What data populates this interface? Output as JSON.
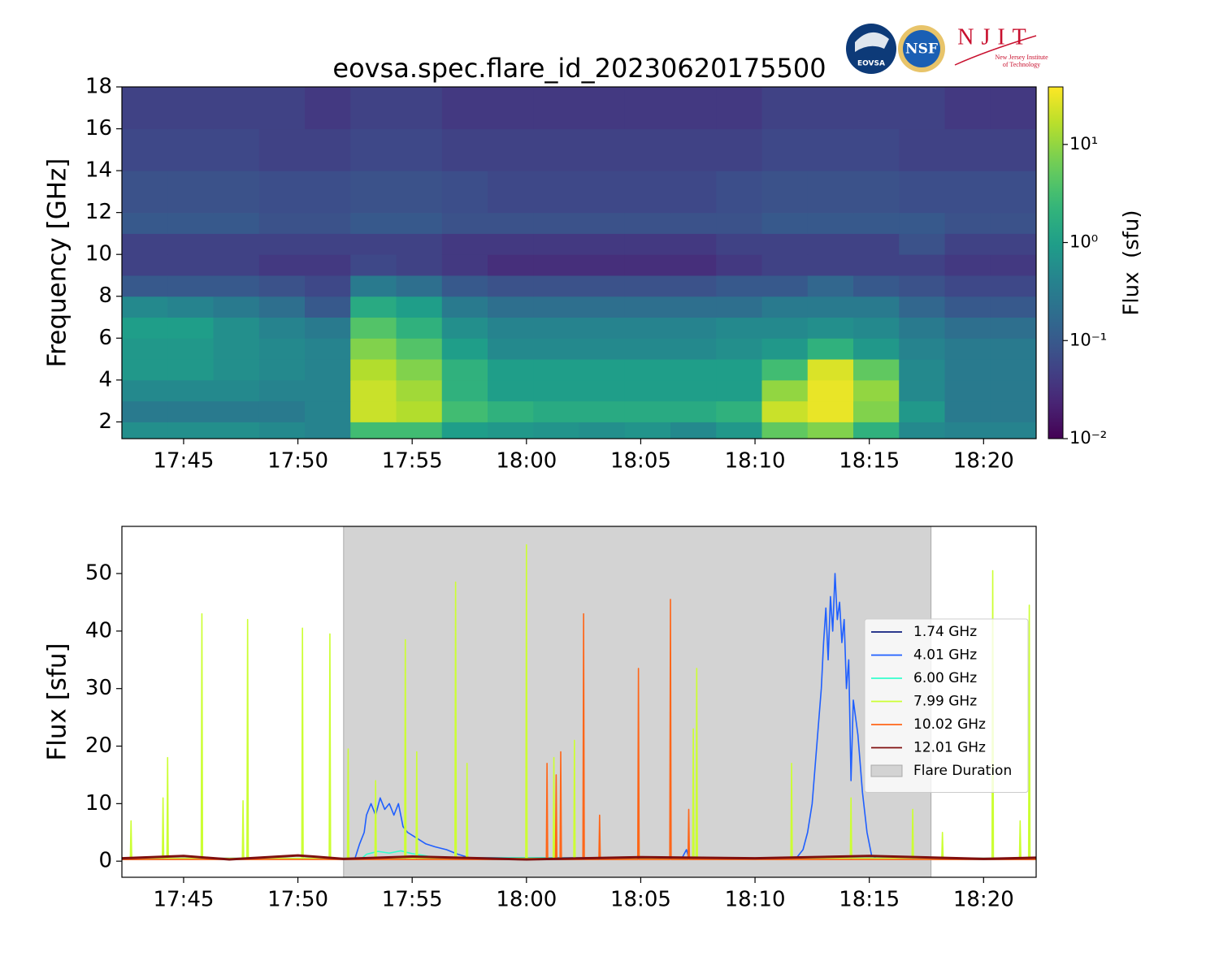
{
  "chart_data": [
    {
      "type": "heatmap",
      "title": "eovsa.spec.flare_id_20230620175500",
      "y_label": "Frequency [GHz]",
      "xlim": [
        1062.3,
        1102.3
      ],
      "ylim": [
        1.2,
        18
      ],
      "xticks": [
        {
          "value": 1065,
          "label": "17:45"
        },
        {
          "value": 1070,
          "label": "17:50"
        },
        {
          "value": 1075,
          "label": "17:55"
        },
        {
          "value": 1080,
          "label": "18:00"
        },
        {
          "value": 1085,
          "label": "18:05"
        },
        {
          "value": 1090,
          "label": "18:10"
        },
        {
          "value": 1095,
          "label": "18:15"
        },
        {
          "value": 1100,
          "label": "18:20"
        }
      ],
      "yticks": [
        2,
        4,
        6,
        8,
        10,
        12,
        14,
        16,
        18
      ],
      "xbins": [
        1062.3,
        1064.3,
        1066.3,
        1068.3,
        1070.3,
        1072.3,
        1074.3,
        1076.3,
        1078.3,
        1080.3,
        1082.3,
        1084.3,
        1086.3,
        1088.3,
        1090.3,
        1092.3,
        1094.3,
        1096.3,
        1098.3,
        1100.3,
        1102.3
      ],
      "ybins": [
        1.2,
        2,
        3,
        4,
        5,
        6,
        7,
        8,
        9,
        10,
        11,
        12,
        14,
        16,
        18
      ],
      "values": [
        [
          0.6,
          0.6,
          0.6,
          0.5,
          0.4,
          3,
          3,
          1,
          0.8,
          0.7,
          0.6,
          0.7,
          0.5,
          0.8,
          5,
          8,
          2,
          0.5,
          0.4,
          0.4
        ],
        [
          0.3,
          0.3,
          0.3,
          0.3,
          0.4,
          20,
          15,
          3,
          2,
          1.5,
          1.5,
          1.5,
          1.5,
          2,
          20,
          30,
          8,
          0.8,
          0.3,
          0.3
        ],
        [
          0.5,
          0.5,
          0.5,
          0.4,
          0.4,
          20,
          12,
          2,
          1,
          1,
          1,
          1,
          1,
          1,
          10,
          30,
          10,
          0.5,
          0.3,
          0.3
        ],
        [
          0.8,
          0.8,
          0.6,
          0.5,
          0.4,
          15,
          8,
          2,
          1,
          1,
          1,
          1,
          1,
          1,
          3,
          25,
          5,
          0.5,
          0.3,
          0.3
        ],
        [
          0.8,
          0.8,
          0.6,
          0.5,
          0.4,
          8,
          4,
          1,
          0.5,
          0.5,
          0.5,
          0.5,
          0.5,
          0.6,
          0.8,
          2,
          0.8,
          0.4,
          0.3,
          0.3
        ],
        [
          1,
          1,
          0.6,
          0.4,
          0.3,
          4,
          2,
          0.6,
          0.4,
          0.4,
          0.4,
          0.4,
          0.4,
          0.5,
          0.5,
          0.6,
          0.5,
          0.3,
          0.2,
          0.2
        ],
        [
          0.5,
          0.4,
          0.3,
          0.2,
          0.1,
          1.5,
          1,
          0.3,
          0.2,
          0.2,
          0.2,
          0.2,
          0.2,
          0.2,
          0.3,
          0.3,
          0.3,
          0.15,
          0.1,
          0.1
        ],
        [
          0.1,
          0.1,
          0.1,
          0.08,
          0.06,
          0.3,
          0.2,
          0.1,
          0.08,
          0.08,
          0.08,
          0.08,
          0.08,
          0.1,
          0.1,
          0.15,
          0.1,
          0.08,
          0.06,
          0.06
        ],
        [
          0.05,
          0.05,
          0.05,
          0.04,
          0.04,
          0.06,
          0.05,
          0.04,
          0.03,
          0.03,
          0.03,
          0.03,
          0.03,
          0.04,
          0.05,
          0.05,
          0.05,
          0.05,
          0.04,
          0.04
        ],
        [
          0.05,
          0.05,
          0.05,
          0.05,
          0.05,
          0.05,
          0.05,
          0.04,
          0.04,
          0.04,
          0.04,
          0.04,
          0.04,
          0.05,
          0.05,
          0.05,
          0.05,
          0.08,
          0.05,
          0.05
        ],
        [
          0.1,
          0.1,
          0.1,
          0.08,
          0.08,
          0.1,
          0.1,
          0.08,
          0.08,
          0.08,
          0.08,
          0.08,
          0.08,
          0.08,
          0.1,
          0.1,
          0.1,
          0.1,
          0.08,
          0.08
        ],
        [
          0.08,
          0.08,
          0.08,
          0.07,
          0.07,
          0.08,
          0.08,
          0.07,
          0.06,
          0.06,
          0.06,
          0.06,
          0.06,
          0.07,
          0.08,
          0.08,
          0.08,
          0.07,
          0.07,
          0.07
        ],
        [
          0.06,
          0.06,
          0.06,
          0.05,
          0.05,
          0.06,
          0.06,
          0.05,
          0.05,
          0.05,
          0.05,
          0.05,
          0.05,
          0.05,
          0.06,
          0.06,
          0.06,
          0.05,
          0.05,
          0.05
        ],
        [
          0.05,
          0.05,
          0.05,
          0.05,
          0.04,
          0.05,
          0.05,
          0.04,
          0.04,
          0.04,
          0.04,
          0.04,
          0.04,
          0.04,
          0.05,
          0.05,
          0.05,
          0.05,
          0.04,
          0.04
        ]
      ],
      "colormap": "viridis",
      "log_color": true,
      "clim": [
        0.01,
        38.6
      ],
      "colorbar": {
        "label": "Flux  (sfu)",
        "ticks": [
          {
            "value": 0.01,
            "label": "10⁻²"
          },
          {
            "value": 0.1,
            "label": "10⁻¹"
          },
          {
            "value": 1,
            "label": "10⁰"
          },
          {
            "value": 10,
            "label": "10¹"
          }
        ]
      }
    },
    {
      "type": "line",
      "y_label": "Flux [sfu]",
      "xlim": [
        1062.3,
        1102.3
      ],
      "ylim": [
        -2.8,
        58.2
      ],
      "xticks": [
        {
          "value": 1065,
          "label": "17:45"
        },
        {
          "value": 1070,
          "label": "17:50"
        },
        {
          "value": 1075,
          "label": "17:55"
        },
        {
          "value": 1080,
          "label": "18:00"
        },
        {
          "value": 1085,
          "label": "18:05"
        },
        {
          "value": 1090,
          "label": "18:10"
        },
        {
          "value": 1095,
          "label": "18:15"
        },
        {
          "value": 1100,
          "label": "18:20"
        }
      ],
      "yticks": [
        0,
        10,
        20,
        30,
        40,
        50
      ],
      "span": {
        "name": "Flare Duration",
        "color": "#d3d3d3",
        "x": [
          1072,
          1097.7
        ]
      },
      "series": [
        {
          "name": "1.74 GHz",
          "color": "#0f1f7f",
          "x": [
            1062.3,
            1070,
            1080,
            1090,
            1102.3
          ],
          "values": [
            0.3,
            0.4,
            0.3,
            0.4,
            0.3
          ]
        },
        {
          "name": "4.01 GHz",
          "color": "#1f5fff",
          "x": [
            1062.3,
            1072.5,
            1072.7,
            1072.9,
            1073.0,
            1073.2,
            1073.4,
            1073.6,
            1073.8,
            1074.0,
            1074.2,
            1074.4,
            1074.6,
            1074.8,
            1075.2,
            1075.6,
            1076.0,
            1076.5,
            1077.0,
            1077.5,
            1085,
            1086.8,
            1087.0,
            1087.1,
            1091.8,
            1092.1,
            1092.3,
            1092.5,
            1092.7,
            1092.9,
            1093.0,
            1093.1,
            1093.2,
            1093.3,
            1093.4,
            1093.5,
            1093.6,
            1093.7,
            1093.8,
            1093.9,
            1094.0,
            1094.1,
            1094.2,
            1094.3,
            1094.5,
            1094.7,
            1094.9,
            1095.1,
            1095.3,
            1102.3
          ],
          "values": [
            0.5,
            0.5,
            3,
            5,
            8,
            10,
            8,
            11,
            9,
            10,
            8,
            10,
            6,
            5,
            4,
            3,
            2.5,
            2,
            1.2,
            0.6,
            0.6,
            0.5,
            2,
            0.6,
            0.5,
            2,
            5,
            10,
            20,
            30,
            38,
            44,
            35,
            46,
            40,
            50,
            42,
            45,
            38,
            42,
            30,
            35,
            14,
            28,
            22,
            12,
            5,
            1,
            0.5,
            0.5
          ]
        },
        {
          "name": "6.00 GHz",
          "color": "#33ffcc",
          "x": [
            1062.3,
            1072.8,
            1073,
            1073.5,
            1074,
            1074.5,
            1075,
            1075.5,
            1076,
            1102.3
          ],
          "values": [
            0.5,
            0.5,
            1.2,
            1.7,
            1.4,
            1.8,
            1.3,
            1,
            0.6,
            0.5
          ]
        },
        {
          "name": "7.99 GHz",
          "color": "#ccff33",
          "x": [
            1062.3,
            1062.67,
            1062.7,
            1062.73,
            1064.07,
            1064.1,
            1064.13,
            1064.27,
            1064.3,
            1064.33,
            1065.77,
            1065.8,
            1065.83,
            1067.57,
            1067.6,
            1067.63,
            1067.77,
            1067.8,
            1067.83,
            1070.17,
            1070.2,
            1070.23,
            1071.37,
            1071.4,
            1071.43,
            1072.17,
            1072.2,
            1072.23,
            1073.37,
            1073.4,
            1073.43,
            1074.67,
            1074.7,
            1074.73,
            1075.17,
            1075.2,
            1075.23,
            1076.87,
            1076.9,
            1076.93,
            1077.37,
            1077.4,
            1077.43,
            1079.97,
            1080.0,
            1080.03,
            1081.17,
            1081.2,
            1081.23,
            1082.07,
            1082.1,
            1082.13,
            1084.87,
            1084.9,
            1084.93,
            1087.27,
            1087.3,
            1087.33,
            1087.42,
            1087.45,
            1087.48,
            1091.57,
            1091.6,
            1091.63,
            1094.17,
            1094.2,
            1094.23,
            1096.87,
            1096.9,
            1096.93,
            1098.17,
            1098.2,
            1098.23,
            1100.37,
            1100.4,
            1100.43,
            1101.57,
            1101.6,
            1101.63,
            1101.97,
            1102.0,
            1102.03,
            1102.3
          ],
          "values": [
            0.5,
            0.5,
            7,
            0.5,
            0.5,
            11,
            0.5,
            0.5,
            18,
            0.5,
            0.5,
            43,
            0.5,
            0.5,
            10.5,
            0.5,
            0.5,
            42,
            0.5,
            0.5,
            40.5,
            0.5,
            0.5,
            39.5,
            0.5,
            0.5,
            19.5,
            0.5,
            0.5,
            14,
            0.5,
            0.5,
            38.5,
            0.5,
            0.5,
            19,
            0.5,
            0.5,
            48.5,
            0.5,
            0.5,
            17,
            0.5,
            0.5,
            55,
            0.5,
            0.5,
            18,
            0.5,
            0.5,
            21,
            0.5,
            0.5,
            12,
            0.5,
            0.5,
            23,
            0.5,
            0.5,
            33.5,
            0.5,
            0.5,
            17,
            0.5,
            0.5,
            11,
            0.5,
            0.5,
            9,
            0.5,
            0.5,
            5,
            0.5,
            0.5,
            50.5,
            0.5,
            0.5,
            7,
            0.5,
            0.5,
            44.5,
            0.5,
            0.5
          ]
        },
        {
          "name": "10.02 GHz",
          "color": "#ff6619",
          "x": [
            1062.3,
            1080.87,
            1080.9,
            1080.93,
            1081.27,
            1081.3,
            1081.33,
            1081.47,
            1081.5,
            1081.53,
            1082.47,
            1082.5,
            1082.53,
            1083.17,
            1083.2,
            1083.23,
            1084.87,
            1084.9,
            1084.93,
            1086.27,
            1086.3,
            1086.33,
            1087.07,
            1087.1,
            1087.13,
            1102.3
          ],
          "values": [
            0.3,
            0.3,
            17,
            0.3,
            0.3,
            15,
            0.3,
            0.3,
            19,
            0.3,
            0.3,
            43,
            0.3,
            0.3,
            8,
            0.3,
            0.3,
            33.5,
            0.3,
            0.3,
            45.5,
            0.3,
            0.3,
            9,
            0.3,
            0.3
          ]
        },
        {
          "name": "12.01 GHz",
          "color": "#7f0f0f",
          "x": [
            1062.3,
            1065,
            1067,
            1070,
            1072,
            1075,
            1080,
            1085,
            1090,
            1095,
            1100,
            1102.3
          ],
          "values": [
            0.5,
            0.9,
            0.3,
            1.0,
            0.4,
            0.8,
            0.3,
            0.7,
            0.5,
            0.9,
            0.4,
            0.6
          ]
        }
      ]
    }
  ],
  "logos": {
    "eovsa": "EOVSA",
    "nsf": "NSF",
    "njit": "NJIT",
    "njit_sub": [
      "New Jersey Institute",
      "of Technology"
    ]
  }
}
